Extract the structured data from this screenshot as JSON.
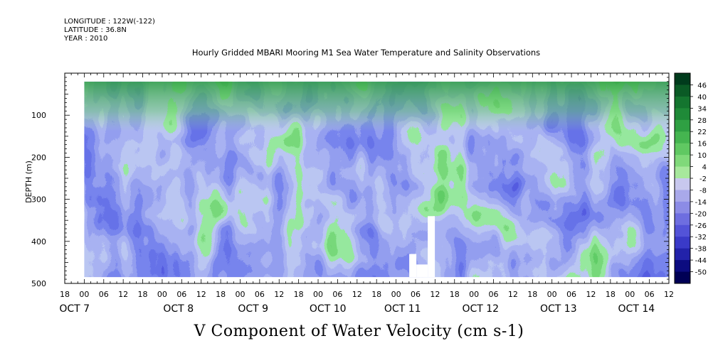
{
  "header": {
    "longitude": "LONGITUDE : 122W(-122)",
    "latitude": "LATITUDE : 36.8N",
    "year": "YEAR : 2010",
    "title": "Hourly Gridded MBARI Mooring M1 Sea Water Temperature and Salinity Observations"
  },
  "caption": "V Component of Water Velocity (cm s-1)",
  "chart_data": {
    "type": "heatmap",
    "title": "Hourly Gridded MBARI Mooring M1 Sea Water Temperature and Salinity Observations",
    "xlabel": "",
    "ylabel": "DEPTH (m)",
    "colorbar_label": "V Component of Water Velocity (cm s-1)",
    "x_hour_ticks": [
      "18",
      "00",
      "06",
      "12",
      "18",
      "00",
      "06",
      "12",
      "18",
      "00",
      "06",
      "12",
      "18",
      "00",
      "06",
      "12",
      "18",
      "00",
      "06",
      "12",
      "18",
      "00",
      "06",
      "12",
      "18",
      "00",
      "06",
      "12",
      "18",
      "00",
      "06",
      "12"
    ],
    "x_day_labels": [
      "OCT 7",
      "OCT 8",
      "OCT 9",
      "OCT 10",
      "OCT 11",
      "OCT 12",
      "OCT 13",
      "OCT 14"
    ],
    "xlim": [
      "2010-10-06 18:00",
      "2010-10-14 12:00"
    ],
    "y_ticks": [
      100,
      200,
      300,
      400,
      500
    ],
    "ylim": [
      500,
      0
    ],
    "y_reversed": true,
    "colorbar_levels": [
      46,
      40,
      34,
      28,
      22,
      16,
      10,
      4,
      -2,
      -8,
      -14,
      -20,
      -26,
      -32,
      -38,
      -44,
      -50
    ],
    "colorbar_range": [
      -50,
      52
    ],
    "colorbar_colors": [
      "#003b1c",
      "#0a5a25",
      "#14752f",
      "#1f8a38",
      "#2fa043",
      "#45b550",
      "#60c862",
      "#80d97a",
      "#a7e89c",
      "#c8c8ee",
      "#a9a9ea",
      "#8c8ce6",
      "#6e6ee0",
      "#5353d8",
      "#3a3ac8",
      "#2222aa",
      "#0c0c80",
      "#000055"
    ],
    "data_depth_range_m": [
      20,
      485
    ],
    "data_time_range": [
      "2010-10-07 00:00",
      "2010-10-14 12:00"
    ]
  },
  "axis_labels": {
    "y": "DEPTH (m)",
    "y_ticks": [
      "100",
      "200",
      "300",
      "400",
      "500"
    ]
  }
}
